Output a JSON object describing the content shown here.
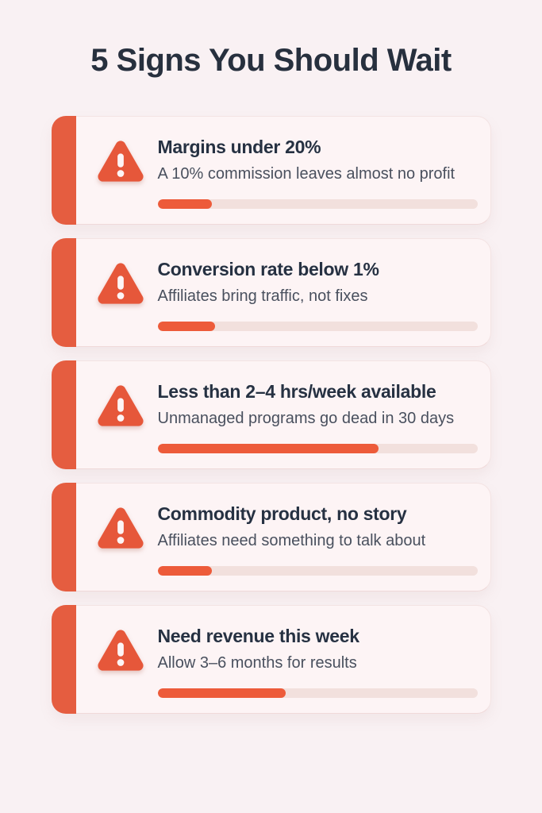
{
  "title": "5 Signs You Should Wait",
  "colors": {
    "page_background": "#f9f1f3",
    "card_background": "#fdf4f5",
    "accent_orange": "#e55d40",
    "progress_fill": "#ed5b3a",
    "progress_track": "#f2e0dd",
    "title_text": "#27303e",
    "heading_text": "#263142",
    "subtitle_text": "#49505e"
  },
  "icons": {
    "warning": "warning-triangle-icon"
  },
  "cards": [
    {
      "heading": "Margins under 20%",
      "subtitle": "A 10% commission leaves almost no profit",
      "progress_percent": 17
    },
    {
      "heading": "Conversion rate below 1%",
      "subtitle": "Affiliates bring traffic, not fixes",
      "progress_percent": 18
    },
    {
      "heading": "Less than 2–4 hrs/week available",
      "subtitle": "Unmanaged programs go dead in 30 days",
      "progress_percent": 69
    },
    {
      "heading": "Commodity product, no story",
      "subtitle": "Affiliates need something to talk about",
      "progress_percent": 17
    },
    {
      "heading": "Need revenue this week",
      "subtitle": "Allow 3–6 months for results",
      "progress_percent": 40
    }
  ]
}
